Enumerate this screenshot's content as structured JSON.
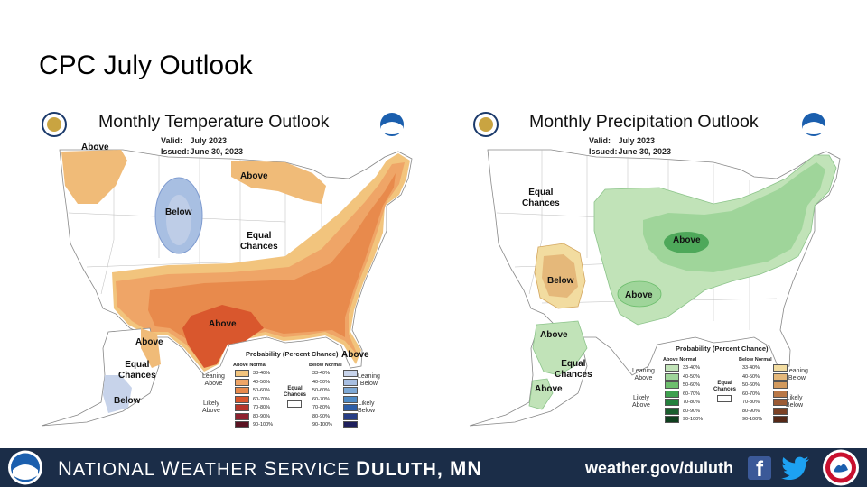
{
  "slide": {
    "title": "CPC July Outlook"
  },
  "temperature_map": {
    "title": "Monthly Temperature Outlook",
    "valid_label": "Valid:",
    "valid_value": "July 2023",
    "issued_label": "Issued:",
    "issued_value": "June 30, 2023",
    "regions": {
      "above_nw": "Above",
      "above_gl": "Above",
      "below_plains": "Below",
      "equal_chances": [
        "Equal",
        "Chances"
      ],
      "above_tx": "Above",
      "above_fl": "Above",
      "above_ak": "Above",
      "equal_ak": [
        "Equal",
        "Chances"
      ],
      "below_ak": "Below"
    },
    "legend": {
      "title": "Probability (Percent Chance)",
      "col_above": "Above Normal",
      "col_below": "Below Normal",
      "leaning_above": [
        "Leaning",
        "Above"
      ],
      "likely_above": [
        "Likely",
        "Above"
      ],
      "leaning_below": [
        "Leaning",
        "Below"
      ],
      "likely_below": [
        "Likely",
        "Below"
      ],
      "equal": [
        "Equal",
        "Chances"
      ],
      "ranges": [
        "33-40%",
        "40-50%",
        "50-60%",
        "60-70%",
        "70-80%",
        "80-90%",
        "90-100%"
      ],
      "above_colors": [
        "#f2c47d",
        "#efa567",
        "#e88a4c",
        "#d9572d",
        "#b6352a",
        "#8e2230",
        "#5a1322"
      ],
      "below_colors": [
        "#c7d3ea",
        "#a8bfe2",
        "#7ea9d6",
        "#4f8bc6",
        "#2d5ea7",
        "#283e86",
        "#1e1f5c"
      ]
    }
  },
  "precipitation_map": {
    "title": "Monthly Precipitation Outlook",
    "valid_label": "Valid:",
    "valid_value": "July 2023",
    "issued_label": "Issued:",
    "issued_value": "June 30, 2023",
    "regions": {
      "equal_chances": [
        "Equal",
        "Chances"
      ],
      "below_sw": "Below",
      "above_mw": "Above",
      "above_sp": "Above",
      "above_ak": "Above",
      "equal_ak": [
        "Equal",
        "Chances"
      ],
      "above_ak2": "Above"
    },
    "legend": {
      "title": "Probability (Percent Chance)",
      "col_above": "Above Normal",
      "col_below": "Below Normal",
      "leaning_above": [
        "Leaning",
        "Above"
      ],
      "likely_above": [
        "Likely",
        "Above"
      ],
      "leaning_below": [
        "Leaning",
        "Below"
      ],
      "likely_below": [
        "Likely",
        "Below"
      ],
      "equal": [
        "Equal",
        "Chances"
      ],
      "ranges": [
        "33-40%",
        "40-50%",
        "50-60%",
        "60-70%",
        "70-80%",
        "80-90%",
        "90-100%"
      ],
      "above_colors": [
        "#c1e3b8",
        "#9fd59a",
        "#6dbe6d",
        "#3fa04f",
        "#24803d",
        "#1a5e2e",
        "#0f3f1e"
      ],
      "below_colors": [
        "#f2dca0",
        "#e5b87a",
        "#d39a5d",
        "#b97847",
        "#9b5b35",
        "#7b4125",
        "#552817"
      ]
    }
  },
  "footer": {
    "org_n": "N",
    "org_ational": "ATIONAL ",
    "org_w": "W",
    "org_eather": "EATHER ",
    "org_s": "S",
    "org_ervice": "ERVICE ",
    "office_d": "D",
    "office_uluth": "ULUTH",
    "office_state": ", MN",
    "url": "weather.gov/duluth",
    "facebook_glyph": "f"
  },
  "colors": {
    "footer_bg": "#1b2d48",
    "temp_above": "#e88a4c",
    "temp_below": "#a8bfe2",
    "precip_above": "#9fd59a",
    "precip_below": "#e5b87a"
  }
}
